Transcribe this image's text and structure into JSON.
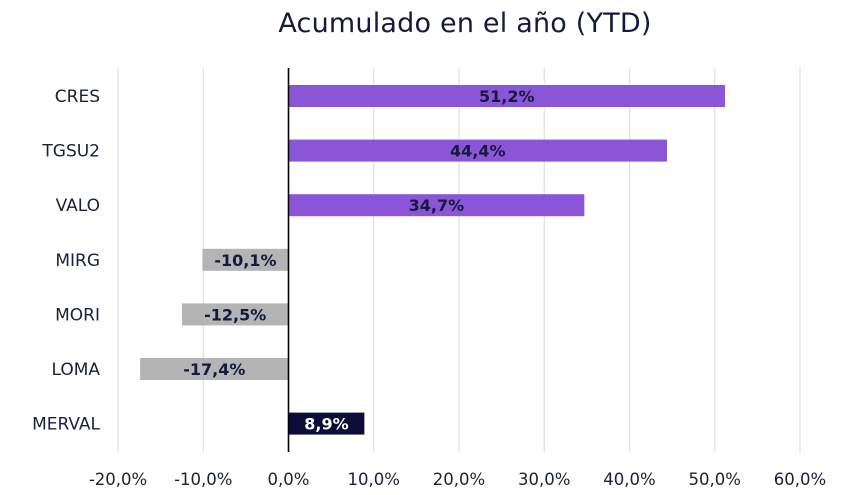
{
  "chart_data": {
    "type": "bar",
    "orientation": "horizontal",
    "title": "Acumulado en el año (YTD)",
    "xlabel": "",
    "ylabel": "",
    "categories": [
      "CRES",
      "TGSU2",
      "VALO",
      "MIRG",
      "MORI",
      "LOMA",
      "MERVAL"
    ],
    "values": [
      51.2,
      44.4,
      34.7,
      -10.1,
      -12.5,
      -17.4,
      8.9
    ],
    "data_labels": [
      "51,2%",
      "44,4%",
      "34,7%",
      "-10,1%",
      "-12,5%",
      "-17,4%",
      "8,9%"
    ],
    "xlim": [
      -20,
      60
    ],
    "x_ticks": [
      -20,
      -10,
      0,
      10,
      20,
      30,
      40,
      50,
      60
    ],
    "x_tick_labels": [
      "-20,0%",
      "-10,0%",
      "0,0%",
      "10,0%",
      "20,0%",
      "30,0%",
      "40,0%",
      "50,0%",
      "60,0%"
    ],
    "grid": "vertical",
    "legend": "none",
    "colors": {
      "positive": "#8a55d6",
      "negative": "#b4b4b4",
      "index": "#0b0c38",
      "label_dark": "#141a3c",
      "label_light": "#ffffff",
      "grid": "#dedede",
      "axis": "#000000"
    },
    "bar_color_roles": [
      "positive",
      "positive",
      "positive",
      "negative",
      "negative",
      "negative",
      "index"
    ]
  }
}
